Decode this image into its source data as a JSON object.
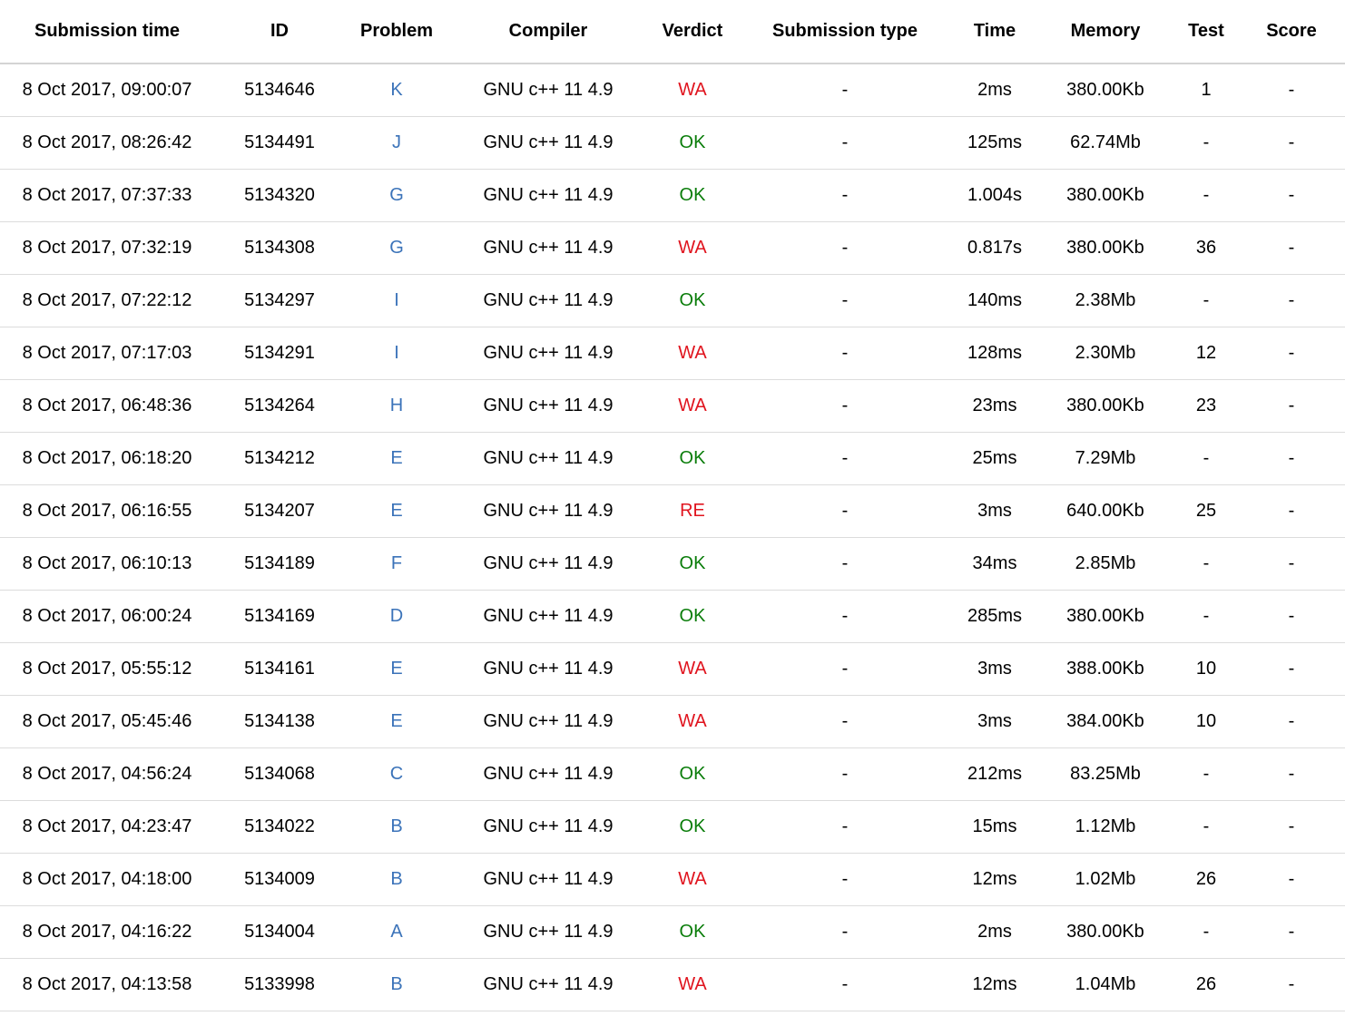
{
  "headers": {
    "submission_time": "Submission time",
    "id": "ID",
    "problem": "Problem",
    "compiler": "Compiler",
    "verdict": "Verdict",
    "submission_type": "Submission type",
    "time": "Time",
    "memory": "Memory",
    "test": "Test",
    "score": "Score"
  },
  "colors": {
    "link": "#3b73b9",
    "ok": "#0a7d0a",
    "error": "#e0141e"
  },
  "rows": [
    {
      "time_submitted": "8 Oct 2017, 09:00:07",
      "id": "5134646",
      "problem": "K",
      "compiler": "GNU c++ 11 4.9",
      "verdict": "WA",
      "type": "-",
      "time": "2ms",
      "memory": "380.00Kb",
      "test": "1",
      "score": "-"
    },
    {
      "time_submitted": "8 Oct 2017, 08:26:42",
      "id": "5134491",
      "problem": "J",
      "compiler": "GNU c++ 11 4.9",
      "verdict": "OK",
      "type": "-",
      "time": "125ms",
      "memory": "62.74Mb",
      "test": "-",
      "score": "-"
    },
    {
      "time_submitted": "8 Oct 2017, 07:37:33",
      "id": "5134320",
      "problem": "G",
      "compiler": "GNU c++ 11 4.9",
      "verdict": "OK",
      "type": "-",
      "time": "1.004s",
      "memory": "380.00Kb",
      "test": "-",
      "score": "-"
    },
    {
      "time_submitted": "8 Oct 2017, 07:32:19",
      "id": "5134308",
      "problem": "G",
      "compiler": "GNU c++ 11 4.9",
      "verdict": "WA",
      "type": "-",
      "time": "0.817s",
      "memory": "380.00Kb",
      "test": "36",
      "score": "-"
    },
    {
      "time_submitted": "8 Oct 2017, 07:22:12",
      "id": "5134297",
      "problem": "I",
      "compiler": "GNU c++ 11 4.9",
      "verdict": "OK",
      "type": "-",
      "time": "140ms",
      "memory": "2.38Mb",
      "test": "-",
      "score": "-"
    },
    {
      "time_submitted": "8 Oct 2017, 07:17:03",
      "id": "5134291",
      "problem": "I",
      "compiler": "GNU c++ 11 4.9",
      "verdict": "WA",
      "type": "-",
      "time": "128ms",
      "memory": "2.30Mb",
      "test": "12",
      "score": "-"
    },
    {
      "time_submitted": "8 Oct 2017, 06:48:36",
      "id": "5134264",
      "problem": "H",
      "compiler": "GNU c++ 11 4.9",
      "verdict": "WA",
      "type": "-",
      "time": "23ms",
      "memory": "380.00Kb",
      "test": "23",
      "score": "-"
    },
    {
      "time_submitted": "8 Oct 2017, 06:18:20",
      "id": "5134212",
      "problem": "E",
      "compiler": "GNU c++ 11 4.9",
      "verdict": "OK",
      "type": "-",
      "time": "25ms",
      "memory": "7.29Mb",
      "test": "-",
      "score": "-"
    },
    {
      "time_submitted": "8 Oct 2017, 06:16:55",
      "id": "5134207",
      "problem": "E",
      "compiler": "GNU c++ 11 4.9",
      "verdict": "RE",
      "type": "-",
      "time": "3ms",
      "memory": "640.00Kb",
      "test": "25",
      "score": "-"
    },
    {
      "time_submitted": "8 Oct 2017, 06:10:13",
      "id": "5134189",
      "problem": "F",
      "compiler": "GNU c++ 11 4.9",
      "verdict": "OK",
      "type": "-",
      "time": "34ms",
      "memory": "2.85Mb",
      "test": "-",
      "score": "-"
    },
    {
      "time_submitted": "8 Oct 2017, 06:00:24",
      "id": "5134169",
      "problem": "D",
      "compiler": "GNU c++ 11 4.9",
      "verdict": "OK",
      "type": "-",
      "time": "285ms",
      "memory": "380.00Kb",
      "test": "-",
      "score": "-"
    },
    {
      "time_submitted": "8 Oct 2017, 05:55:12",
      "id": "5134161",
      "problem": "E",
      "compiler": "GNU c++ 11 4.9",
      "verdict": "WA",
      "type": "-",
      "time": "3ms",
      "memory": "388.00Kb",
      "test": "10",
      "score": "-"
    },
    {
      "time_submitted": "8 Oct 2017, 05:45:46",
      "id": "5134138",
      "problem": "E",
      "compiler": "GNU c++ 11 4.9",
      "verdict": "WA",
      "type": "-",
      "time": "3ms",
      "memory": "384.00Kb",
      "test": "10",
      "score": "-"
    },
    {
      "time_submitted": "8 Oct 2017, 04:56:24",
      "id": "5134068",
      "problem": "C",
      "compiler": "GNU c++ 11 4.9",
      "verdict": "OK",
      "type": "-",
      "time": "212ms",
      "memory": "83.25Mb",
      "test": "-",
      "score": "-"
    },
    {
      "time_submitted": "8 Oct 2017, 04:23:47",
      "id": "5134022",
      "problem": "B",
      "compiler": "GNU c++ 11 4.9",
      "verdict": "OK",
      "type": "-",
      "time": "15ms",
      "memory": "1.12Mb",
      "test": "-",
      "score": "-"
    },
    {
      "time_submitted": "8 Oct 2017, 04:18:00",
      "id": "5134009",
      "problem": "B",
      "compiler": "GNU c++ 11 4.9",
      "verdict": "WA",
      "type": "-",
      "time": "12ms",
      "memory": "1.02Mb",
      "test": "26",
      "score": "-"
    },
    {
      "time_submitted": "8 Oct 2017, 04:16:22",
      "id": "5134004",
      "problem": "A",
      "compiler": "GNU c++ 11 4.9",
      "verdict": "OK",
      "type": "-",
      "time": "2ms",
      "memory": "380.00Kb",
      "test": "-",
      "score": "-"
    },
    {
      "time_submitted": "8 Oct 2017, 04:13:58",
      "id": "5133998",
      "problem": "B",
      "compiler": "GNU c++ 11 4.9",
      "verdict": "WA",
      "type": "-",
      "time": "12ms",
      "memory": "1.04Mb",
      "test": "26",
      "score": "-"
    }
  ]
}
